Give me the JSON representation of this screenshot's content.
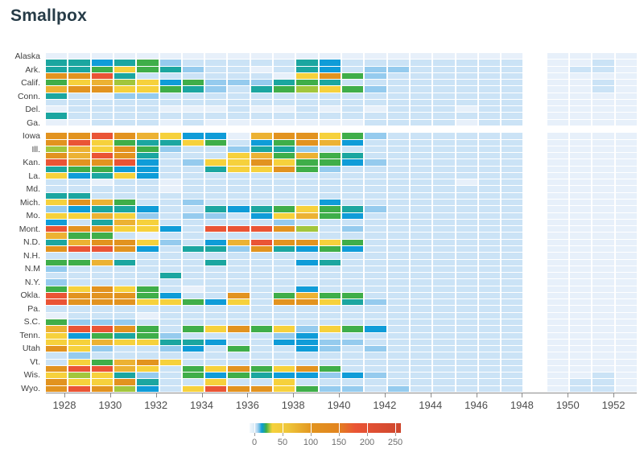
{
  "title": "Smallpox",
  "palette": {
    "0": "#e7f0fa",
    "1": "#cbe3f6",
    "2": "#95cbee",
    "3": "#0f9cd8",
    "4": "#1ba6a0",
    "5": "#3fae49",
    "6": "#a2c63c",
    "7": "#f6d13c",
    "8": "#ecb233",
    "9": "#e2931f",
    "R": "#ea5435",
    "D": "#ce472e",
    "W": "#ffffff"
  },
  "class_value_estimates": {
    "0": 0,
    "1": 3,
    "2": 10,
    "3": 15,
    "4": 20,
    "5": 25,
    "6": 35,
    "7": 50,
    "8": 90,
    "9": 130,
    "R": 200,
    "D": 250,
    "W": "no data"
  },
  "chart_data": {
    "type": "heatmap",
    "title": "Smallpox",
    "x_start_year": 1928,
    "x_end_year": 1953,
    "x_tick_years": [
      1928,
      1930,
      1932,
      1934,
      1936,
      1938,
      1940,
      1942,
      1944,
      1946,
      1948,
      1950,
      1952
    ],
    "legend": {
      "tick_values": [
        0,
        50,
        100,
        150,
        200,
        250
      ],
      "position": "bottom-right",
      "gradient_stops": [
        [
          "0%",
          "#f2f8fc"
        ],
        [
          "3%",
          "#dcebf7"
        ],
        [
          "5%",
          "#b5d8f1"
        ],
        [
          "6.5%",
          "#6cbde4"
        ],
        [
          "8%",
          "#0f9cd8"
        ],
        [
          "9.5%",
          "#1ba6a0"
        ],
        [
          "11%",
          "#3fae49"
        ],
        [
          "13%",
          "#a2c63c"
        ],
        [
          "15%",
          "#f6d13c"
        ],
        [
          "25%",
          "#eec63a"
        ],
        [
          "42%",
          "#e2931f"
        ],
        [
          "58%",
          "#e2851f"
        ],
        [
          "70%",
          "#ea5435"
        ],
        [
          "100%",
          "#ce472e"
        ]
      ]
    },
    "value_encoding": "each char of 'v' is one year 1928-1953; key in palette / class_value_estimates (cases per 100k, estimated); W = missing (white)",
    "rows": [
      {
        "abbr": "AK",
        "label": "Alaska",
        "v": "000000000000000000000W0000"
      },
      {
        "abbr": "AL",
        "label": "",
        "v": "443452111114311111111W0010"
      },
      {
        "abbr": "AR",
        "label": "Ark.",
        "v": "445754211014312211111W0110"
      },
      {
        "abbr": "AZ",
        "label": "",
        "v": "99R411111107952111111W0000"
      },
      {
        "abbr": "CA",
        "label": "Calif.",
        "v": "578673522245411111111W0010"
      },
      {
        "abbr": "CO",
        "label": "",
        "v": "899775421456752111111W0010"
      },
      {
        "abbr": "CT",
        "label": "Conn.",
        "v": "410221111111111111111W0000"
      },
      {
        "abbr": "DC",
        "label": "",
        "v": "111111111111111111111W0000"
      },
      {
        "abbr": "DE",
        "label": "Del.",
        "v": "011110001001010111011W0000"
      },
      {
        "abbr": "FL",
        "label": "",
        "v": "411111111111111111111W0000"
      },
      {
        "abbr": "GA",
        "label": "Ga.",
        "v": "001110100000001111011W0000"
      },
      {
        "abbr": "HI",
        "label": "",
        "v": "WWWWWWWWWWWWWWWWWWWWWWWWWW"
      },
      {
        "abbr": "IA",
        "label": "Iowa",
        "v": "99R987330899752111111W0000"
      },
      {
        "abbr": "ID",
        "label": "",
        "v": "9R7544751359831111111W0000"
      },
      {
        "abbr": "IL",
        "label": "Ill.",
        "v": "687952112442111111111W0000"
      },
      {
        "abbr": "IN",
        "label": "",
        "v": "98R941117858541111111W0000"
      },
      {
        "abbr": "KS",
        "label": "Kan.",
        "v": "R99R31277975532111111W0000"
      },
      {
        "abbr": "KY",
        "label": "",
        "v": "455331147795211111111W0000"
      },
      {
        "abbr": "LA",
        "label": "La.",
        "v": "734731111111111111111W0000"
      },
      {
        "abbr": "MA",
        "label": "",
        "v": "110110111111111111011W0000"
      },
      {
        "abbr": "MD",
        "label": "Md.",
        "v": "111110111111111111111W0000"
      },
      {
        "abbr": "ME",
        "label": "",
        "v": "441111111111111111111W0000"
      },
      {
        "abbr": "MI",
        "label": "Mich.",
        "v": "798511211111311111111W0000"
      },
      {
        "abbr": "MN",
        "label": "",
        "v": "234431143457542111111W0000"
      },
      {
        "abbr": "MO",
        "label": "Mo.",
        "v": "778721221378531111111W0000"
      },
      {
        "abbr": "MS",
        "label": "",
        "v": "314871111121111111111W0000"
      },
      {
        "abbr": "MT",
        "label": "Mont.",
        "v": "R997731RRR96121111111W0000"
      },
      {
        "abbr": "NC",
        "label": "",
        "v": "855101111111111111111W0000"
      },
      {
        "abbr": "ND",
        "label": "N.D.",
        "v": "489972138R99751111111W0000"
      },
      {
        "abbr": "NE",
        "label": "",
        "v": "9RR931442943531111111W0000"
      },
      {
        "abbr": "NH",
        "label": "N.H.",
        "v": "111111111111111111111W0000"
      },
      {
        "abbr": "NJ",
        "label": "",
        "v": "558411141113411111111W0000"
      },
      {
        "abbr": "NM",
        "label": "N.M",
        "v": "211111111111111111111W0000"
      },
      {
        "abbr": "NV",
        "label": "",
        "v": "111114111111111111111W0000"
      },
      {
        "abbr": "NY",
        "label": "N.Y.",
        "v": "211111111111111111111W0000"
      },
      {
        "abbr": "OH",
        "label": "",
        "v": "579751011113111111111W0000"
      },
      {
        "abbr": "OK",
        "label": "Okla.",
        "v": "R99953119158551111111W0000"
      },
      {
        "abbr": "OR",
        "label": "",
        "v": "R99977537199742111111W0000"
      },
      {
        "abbr": "PA",
        "label": "Pa.",
        "v": "111111111111111111111W0000"
      },
      {
        "abbr": "RI",
        "label": "",
        "v": "011101111111111111111W0000"
      },
      {
        "abbr": "SC",
        "label": "S.C.",
        "v": "522211111111111111111W0000"
      },
      {
        "abbr": "SD",
        "label": "",
        "v": "8RR951579572753111111W0000"
      },
      {
        "abbr": "TN",
        "label": "Tenn.",
        "v": "735452111123111111111W0000"
      },
      {
        "abbr": "TX",
        "label": "",
        "v": "778774431133221111111W0000"
      },
      {
        "abbr": "UT",
        "label": "Utah",
        "v": "972112315113212111111W0000"
      },
      {
        "abbr": "VA",
        "label": "",
        "v": "121111111111111111111W0000"
      },
      {
        "abbr": "VT",
        "label": "Vt.",
        "v": "175897111111111111111W0000"
      },
      {
        "abbr": "WA",
        "label": "",
        "v": "9RR871579579511111111W0000"
      },
      {
        "abbr": "WI",
        "label": "Wis.",
        "v": "767421535433232111111W0010"
      },
      {
        "abbr": "WV",
        "label": "",
        "v": "977941171171111111111W0110"
      },
      {
        "abbr": "WY",
        "label": "Wyo.",
        "v": "9R96317R9975221211111W0110"
      }
    ]
  }
}
